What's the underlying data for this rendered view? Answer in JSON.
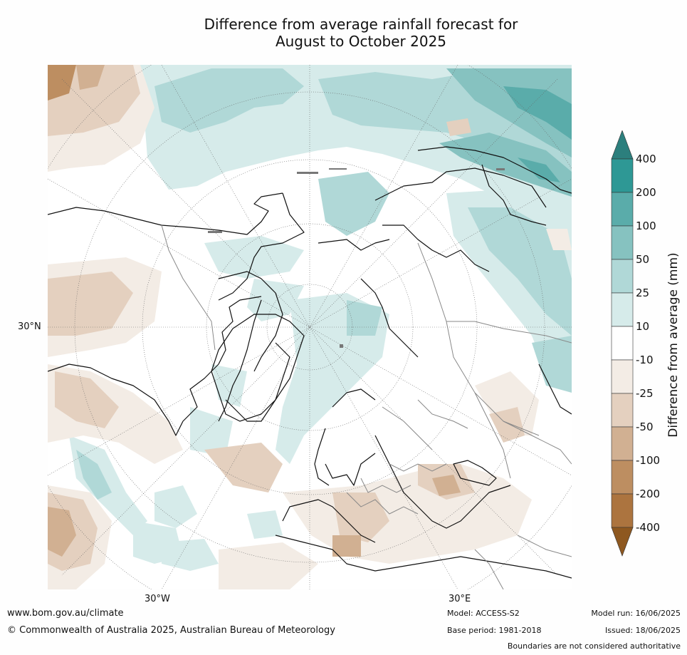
{
  "title_line1": "Difference from average rainfall forecast for",
  "title_line2": "August to October 2025",
  "map_labels": {
    "lat_30n": "30°N",
    "lon_30w": "30°W",
    "lon_30e": "30°E"
  },
  "colorbar": {
    "title": "Difference from average (mm)",
    "ticks": [
      "400",
      "200",
      "100",
      "50",
      "25",
      "10",
      "-10",
      "-25",
      "-50",
      "-100",
      "-200",
      "-400"
    ],
    "colors": [
      "#2c7f7d",
      "#2e9895",
      "#5aacaa",
      "#86c2c0",
      "#b0d8d7",
      "#d6ebea",
      "#ffffff",
      "#f3ece5",
      "#e4d0bf",
      "#d1b092",
      "#bd8e61",
      "#ac743f",
      "#8e5820"
    ],
    "extend": "both"
  },
  "colors": {
    "land_outline": "#111111",
    "country_border": "#888888",
    "graticule": "#666666"
  },
  "footer": {
    "website": "www.bom.gov.au/climate",
    "copyright": "© Commonwealth of Australia 2025, Australian Bureau of Meteorology",
    "model": "Model: ACCESS-S2",
    "base_period": "Base period: 1981-2018",
    "model_run": "Model run: 16/06/2025",
    "issued": "Issued: 18/06/2025",
    "disclaimer": "Boundaries are not considered authoritative"
  }
}
